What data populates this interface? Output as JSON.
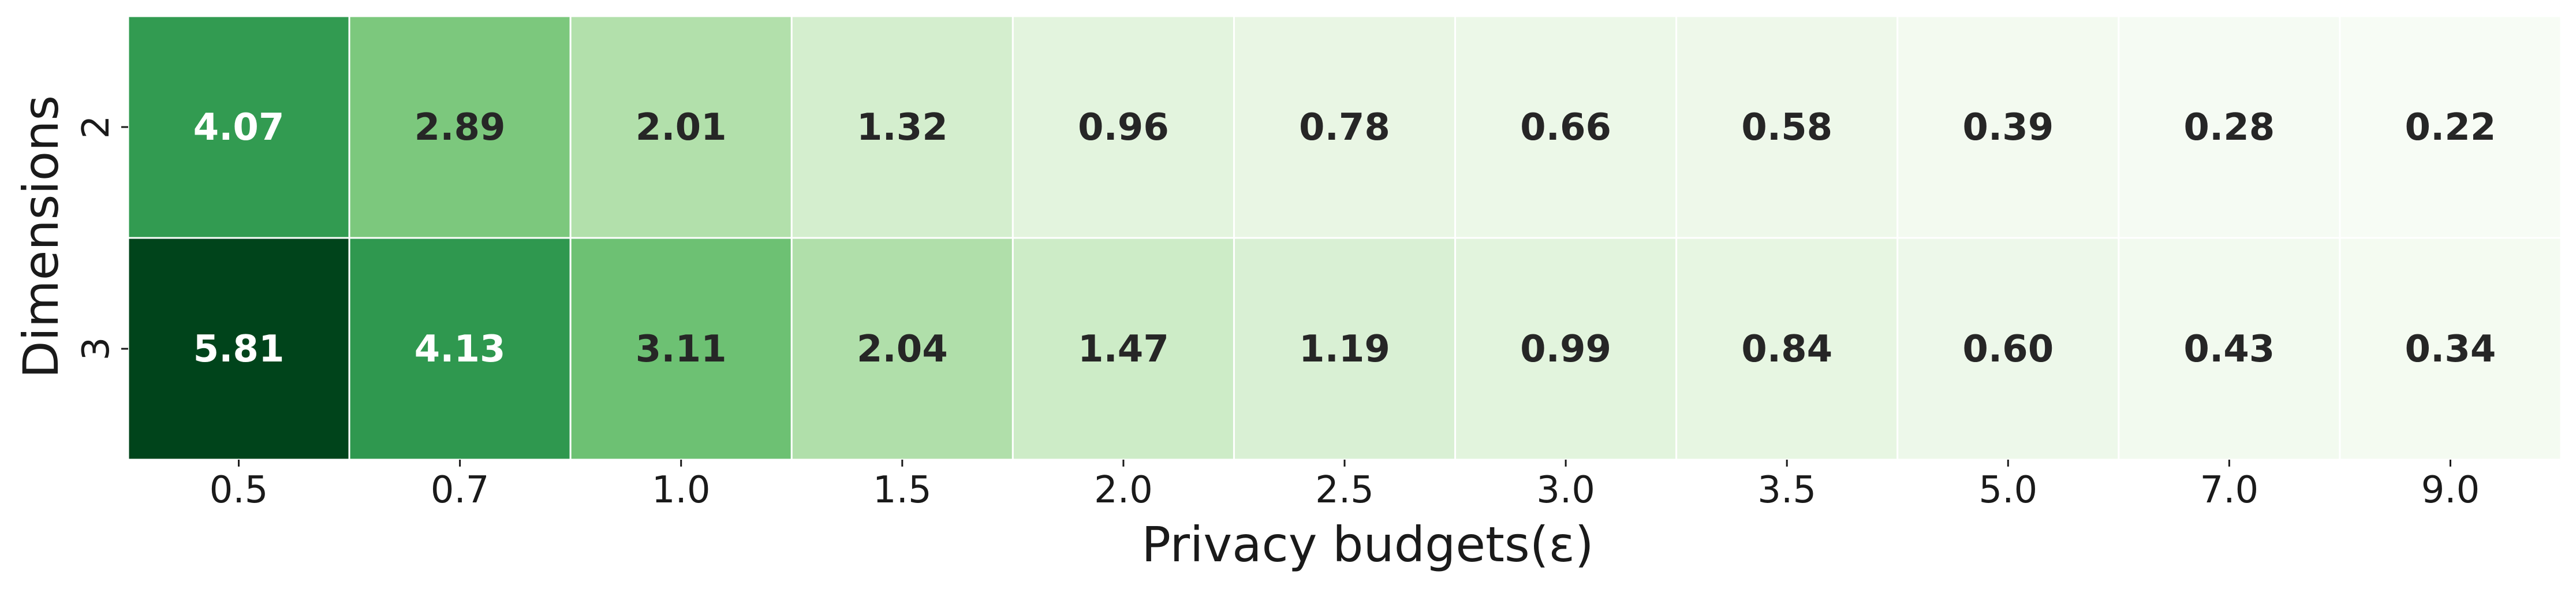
{
  "chart_data": {
    "type": "heatmap",
    "colormap": "Greens",
    "vmin": 0.22,
    "vmax": 5.81,
    "xlabel": "Privacy budgets(ε)",
    "ylabel": "Dimensions",
    "x_categories": [
      "0.5",
      "0.7",
      "1.0",
      "1.5",
      "2.0",
      "2.5",
      "3.0",
      "3.5",
      "5.0",
      "7.0",
      "9.0"
    ],
    "y_categories": [
      "2",
      "3"
    ],
    "values": [
      [
        4.07,
        2.89,
        2.01,
        1.32,
        0.96,
        0.78,
        0.66,
        0.58,
        0.39,
        0.28,
        0.22
      ],
      [
        5.81,
        4.13,
        3.11,
        2.04,
        1.47,
        1.19,
        0.99,
        0.84,
        0.6,
        0.43,
        0.34
      ]
    ],
    "value_labels": [
      [
        "4.07",
        "2.89",
        "2.01",
        "1.32",
        "0.96",
        "0.78",
        "0.66",
        "0.58",
        "0.39",
        "0.28",
        "0.22"
      ],
      [
        "5.81",
        "4.13",
        "3.11",
        "2.04",
        "1.47",
        "1.19",
        "0.99",
        "0.84",
        "0.60",
        "0.43",
        "0.34"
      ]
    ],
    "colorbar": false,
    "grid": false
  }
}
